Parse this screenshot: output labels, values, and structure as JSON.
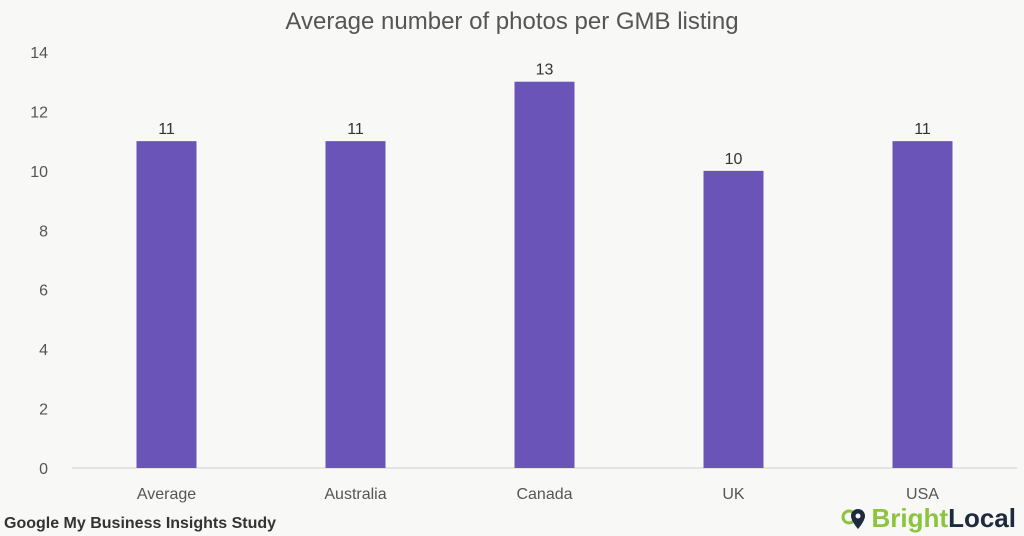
{
  "chart_data": {
    "type": "bar",
    "title": "Average number of photos per GMB listing",
    "categories": [
      "Average",
      "Australia",
      "Canada",
      "UK",
      "USA"
    ],
    "values": [
      11,
      11,
      13,
      10,
      11
    ],
    "data_labels": [
      "11",
      "11",
      "13",
      "10",
      "11"
    ],
    "ylim": [
      0,
      14
    ],
    "yticks": [
      0,
      2,
      4,
      6,
      8,
      10,
      12,
      14
    ],
    "grid": false,
    "legend": "none",
    "bar_color": "#6a54b8"
  },
  "footer": "Google My Business Insights Study",
  "logo": {
    "part1": "Bright",
    "part2": "Local",
    "brand_colors": [
      "#8cc43e",
      "#1e2b3c"
    ]
  }
}
